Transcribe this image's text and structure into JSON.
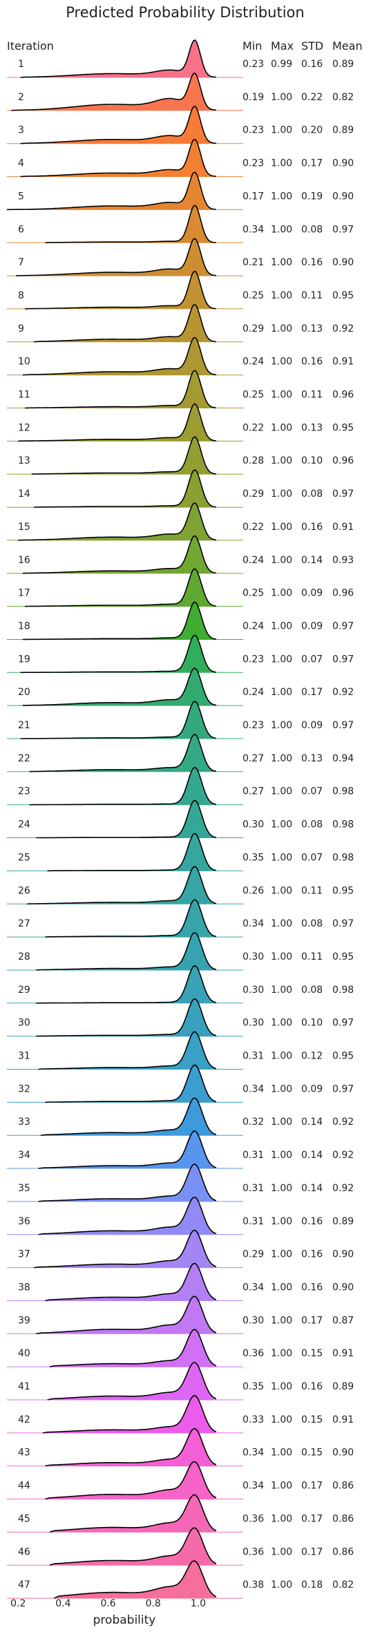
{
  "chart_data": {
    "type": "ridgeline",
    "title": "Predicted Probability Distribution",
    "xlabel": "probability",
    "row_header": "Iteration",
    "stat_headers": [
      "Min",
      "Max",
      "STD",
      "Mean"
    ],
    "xlim": [
      0.15,
      1.2
    ],
    "xticks": [
      "0.2",
      "0.4",
      "0.6",
      "0.8",
      "1.0"
    ],
    "xtick_values": [
      0.2,
      0.4,
      0.6,
      0.8,
      1.0
    ],
    "grid": false,
    "colormap": "husl rainbow (red → orange → olive → green → teal → blue → purple → pink)",
    "rows": [
      {
        "iteration": "1",
        "min": "0.23",
        "max": "0.99",
        "std": "0.16",
        "mean": "0.89",
        "color": "#f77189"
      },
      {
        "iteration": "2",
        "min": "0.19",
        "max": "1.00",
        "std": "0.22",
        "mean": "0.82",
        "color": "#f7754f"
      },
      {
        "iteration": "3",
        "min": "0.23",
        "max": "1.00",
        "std": "0.20",
        "mean": "0.89",
        "color": "#f77b38"
      },
      {
        "iteration": "4",
        "min": "0.23",
        "max": "1.00",
        "std": "0.17",
        "mean": "0.90",
        "color": "#f28032"
      },
      {
        "iteration": "5",
        "min": "0.17",
        "max": "1.00",
        "std": "0.19",
        "mean": "0.90",
        "color": "#e58532"
      },
      {
        "iteration": "6",
        "min": "0.34",
        "max": "1.00",
        "std": "0.08",
        "mean": "0.97",
        "color": "#d98a32"
      },
      {
        "iteration": "7",
        "min": "0.21",
        "max": "1.00",
        "std": "0.16",
        "mean": "0.90",
        "color": "#cd8e32"
      },
      {
        "iteration": "8",
        "min": "0.25",
        "max": "1.00",
        "std": "0.11",
        "mean": "0.95",
        "color": "#c29132"
      },
      {
        "iteration": "9",
        "min": "0.29",
        "max": "1.00",
        "std": "0.13",
        "mean": "0.92",
        "color": "#b89432"
      },
      {
        "iteration": "10",
        "min": "0.24",
        "max": "1.00",
        "std": "0.16",
        "mean": "0.91",
        "color": "#ae9732"
      },
      {
        "iteration": "11",
        "min": "0.25",
        "max": "1.00",
        "std": "0.11",
        "mean": "0.96",
        "color": "#a59a32"
      },
      {
        "iteration": "12",
        "min": "0.22",
        "max": "1.00",
        "std": "0.13",
        "mean": "0.95",
        "color": "#9c9c32"
      },
      {
        "iteration": "13",
        "min": "0.28",
        "max": "1.00",
        "std": "0.10",
        "mean": "0.96",
        "color": "#939e32"
      },
      {
        "iteration": "14",
        "min": "0.29",
        "max": "1.00",
        "std": "0.08",
        "mean": "0.97",
        "color": "#89a132"
      },
      {
        "iteration": "15",
        "min": "0.22",
        "max": "1.00",
        "std": "0.16",
        "mean": "0.91",
        "color": "#7ea332"
      },
      {
        "iteration": "16",
        "min": "0.24",
        "max": "1.00",
        "std": "0.14",
        "mean": "0.93",
        "color": "#71a632"
      },
      {
        "iteration": "17",
        "min": "0.25",
        "max": "1.00",
        "std": "0.09",
        "mean": "0.96",
        "color": "#5fa932"
      },
      {
        "iteration": "18",
        "min": "0.24",
        "max": "1.00",
        "std": "0.09",
        "mean": "0.97",
        "color": "#3ead32"
      },
      {
        "iteration": "19",
        "min": "0.23",
        "max": "1.00",
        "std": "0.07",
        "mean": "0.97",
        "color": "#32ad5a"
      },
      {
        "iteration": "20",
        "min": "0.24",
        "max": "1.00",
        "std": "0.17",
        "mean": "0.92",
        "color": "#33ab6f"
      },
      {
        "iteration": "21",
        "min": "0.23",
        "max": "1.00",
        "std": "0.09",
        "mean": "0.97",
        "color": "#34aa7c"
      },
      {
        "iteration": "22",
        "min": "0.27",
        "max": "1.00",
        "std": "0.13",
        "mean": "0.94",
        "color": "#34a987"
      },
      {
        "iteration": "23",
        "min": "0.27",
        "max": "1.00",
        "std": "0.07",
        "mean": "0.98",
        "color": "#35a890"
      },
      {
        "iteration": "24",
        "min": "0.30",
        "max": "1.00",
        "std": "0.08",
        "mean": "0.98",
        "color": "#35a797"
      },
      {
        "iteration": "25",
        "min": "0.35",
        "max": "1.00",
        "std": "0.07",
        "mean": "0.98",
        "color": "#36a69e"
      },
      {
        "iteration": "26",
        "min": "0.26",
        "max": "1.00",
        "std": "0.11",
        "mean": "0.95",
        "color": "#36a5a4"
      },
      {
        "iteration": "27",
        "min": "0.34",
        "max": "1.00",
        "std": "0.08",
        "mean": "0.97",
        "color": "#37a4aa"
      },
      {
        "iteration": "28",
        "min": "0.30",
        "max": "1.00",
        "std": "0.11",
        "mean": "0.95",
        "color": "#37a3b0"
      },
      {
        "iteration": "29",
        "min": "0.30",
        "max": "1.00",
        "std": "0.08",
        "mean": "0.98",
        "color": "#38a2b6"
      },
      {
        "iteration": "30",
        "min": "0.30",
        "max": "1.00",
        "std": "0.10",
        "mean": "0.97",
        "color": "#39a1bd"
      },
      {
        "iteration": "31",
        "min": "0.31",
        "max": "1.00",
        "std": "0.12",
        "mean": "0.95",
        "color": "#3aa0c5"
      },
      {
        "iteration": "32",
        "min": "0.34",
        "max": "1.00",
        "std": "0.09",
        "mean": "0.97",
        "color": "#3b9ecf"
      },
      {
        "iteration": "33",
        "min": "0.32",
        "max": "1.00",
        "std": "0.14",
        "mean": "0.92",
        "color": "#3d9bdc"
      },
      {
        "iteration": "34",
        "min": "0.31",
        "max": "1.00",
        "std": "0.14",
        "mean": "0.92",
        "color": "#5896ee"
      },
      {
        "iteration": "35",
        "min": "0.31",
        "max": "1.00",
        "std": "0.14",
        "mean": "0.92",
        "color": "#7a90f2"
      },
      {
        "iteration": "36",
        "min": "0.31",
        "max": "1.00",
        "std": "0.16",
        "mean": "0.89",
        "color": "#918af4"
      },
      {
        "iteration": "37",
        "min": "0.29",
        "max": "1.00",
        "std": "0.16",
        "mean": "0.90",
        "color": "#a385f4"
      },
      {
        "iteration": "38",
        "min": "0.34",
        "max": "1.00",
        "std": "0.16",
        "mean": "0.90",
        "color": "#b37ff4"
      },
      {
        "iteration": "39",
        "min": "0.30",
        "max": "1.00",
        "std": "0.17",
        "mean": "0.87",
        "color": "#c278f4"
      },
      {
        "iteration": "40",
        "min": "0.36",
        "max": "1.00",
        "std": "0.15",
        "mean": "0.91",
        "color": "#d070f4"
      },
      {
        "iteration": "41",
        "min": "0.35",
        "max": "1.00",
        "std": "0.16",
        "mean": "0.89",
        "color": "#de66f4"
      },
      {
        "iteration": "42",
        "min": "0.33",
        "max": "1.00",
        "std": "0.15",
        "mean": "0.91",
        "color": "#ec5cea"
      },
      {
        "iteration": "43",
        "min": "0.34",
        "max": "1.00",
        "std": "0.15",
        "mean": "0.90",
        "color": "#f45fd6"
      },
      {
        "iteration": "44",
        "min": "0.34",
        "max": "1.00",
        "std": "0.17",
        "mean": "0.86",
        "color": "#f564c6"
      },
      {
        "iteration": "45",
        "min": "0.36",
        "max": "1.00",
        "std": "0.17",
        "mean": "0.86",
        "color": "#f568b7"
      },
      {
        "iteration": "46",
        "min": "0.36",
        "max": "1.00",
        "std": "0.17",
        "mean": "0.86",
        "color": "#f56ba9"
      },
      {
        "iteration": "47",
        "min": "0.38",
        "max": "1.00",
        "std": "0.18",
        "mean": "0.82",
        "color": "#f66e9a"
      }
    ]
  }
}
